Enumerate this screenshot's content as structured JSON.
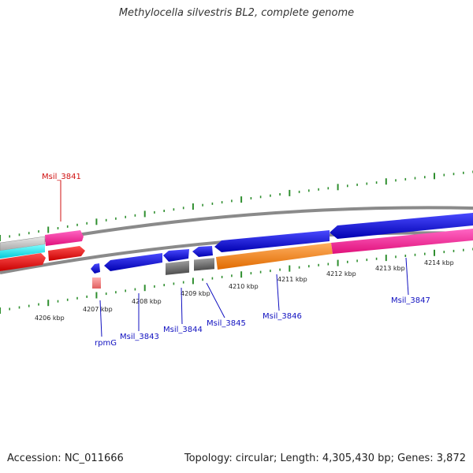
{
  "title": "Methylocella silvestris BL2, complete genome",
  "footer": {
    "accession_label": "Accession: ",
    "accession": "NC_011666",
    "topology_label": "Topology: ",
    "topology": "circular",
    "length_label": "; Length: ",
    "length": "4,305,430 bp",
    "genes_label": "; Genes: ",
    "genes": "3,872"
  },
  "scale_labels": [
    "4206 kbp",
    "4207 kbp",
    "4208 kbp",
    "4209 kbp",
    "4210 kbp",
    "4211 kbp",
    "4212 kbp",
    "4213 kbp",
    "4214 kbp"
  ],
  "gene_labels": [
    "Msil_3841",
    "rpmG",
    "Msil_3843",
    "Msil_3844",
    "Msil_3845",
    "Msil_3846",
    "Msil_3847"
  ],
  "colors": {
    "forward_cds": "#0a0ae0",
    "reverse_cds": "#ff0000",
    "trna": "#f08080",
    "gray_feature": "#707070",
    "orange_feature": "#ff8c1a",
    "magenta_feature": "#ff2aa0",
    "cyan_feature": "#22e6f0",
    "backbone": "#8a8a8a",
    "tick": "#2f8f2f",
    "label_blue": "#1010c0",
    "label_red": "#d01010"
  }
}
